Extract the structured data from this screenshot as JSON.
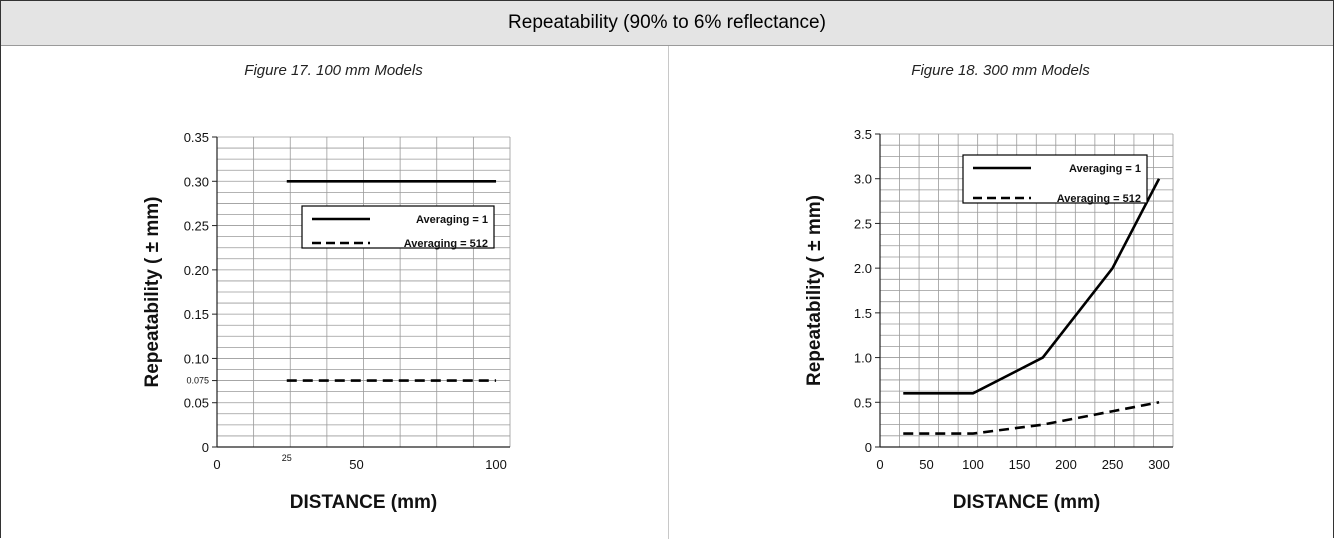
{
  "header": {
    "title": "Repeatability (90% to 6% reflectance)"
  },
  "chart_data": [
    {
      "type": "line",
      "caption": "Figure 17. 100 mm Models",
      "xlabel": "DISTANCE (mm)",
      "ylabel": "Repeatability ( ± mm)",
      "xlim": [
        0,
        105
      ],
      "ylim": [
        0,
        0.35
      ],
      "x_ticks": [
        0,
        25,
        50,
        100
      ],
      "y_ticks": [
        0,
        0.05,
        0.075,
        0.1,
        0.15,
        0.2,
        0.25,
        0.3,
        0.35
      ],
      "y_tick_labels": [
        "0",
        "0.05",
        "0.075",
        "0.10",
        "0.15",
        "0.20",
        "0.25",
        "0.30",
        "0.35"
      ],
      "grid": true,
      "legend_position": "center-right",
      "series": [
        {
          "name": "Averaging = 1",
          "style": "solid",
          "x": [
            25,
            100
          ],
          "y": [
            0.3,
            0.3
          ]
        },
        {
          "name": "Averaging = 512",
          "style": "dashed",
          "x": [
            25,
            100
          ],
          "y": [
            0.075,
            0.075
          ]
        }
      ]
    },
    {
      "type": "line",
      "caption": "Figure 18. 300 mm Models",
      "xlabel": "DISTANCE (mm)",
      "ylabel": "Repeatability ( ± mm)",
      "xlim": [
        0,
        315
      ],
      "ylim": [
        0,
        3.5
      ],
      "x_ticks": [
        0,
        50,
        100,
        150,
        200,
        250,
        300
      ],
      "y_ticks": [
        0,
        0.5,
        1.0,
        1.5,
        2.0,
        2.5,
        3.0,
        3.5
      ],
      "y_tick_labels": [
        "0",
        "0.5",
        "1.0",
        "1.5",
        "2.0",
        "2.5",
        "3.0",
        "3.5"
      ],
      "grid": true,
      "legend_position": "top-right",
      "series": [
        {
          "name": "Averaging = 1",
          "style": "solid",
          "x": [
            25,
            100,
            175,
            250,
            300
          ],
          "y": [
            0.6,
            0.6,
            1.0,
            2.0,
            3.0
          ]
        },
        {
          "name": "Averaging = 512",
          "style": "dashed",
          "x": [
            25,
            100,
            175,
            250,
            300
          ],
          "y": [
            0.15,
            0.15,
            0.25,
            0.4,
            0.5
          ]
        }
      ]
    }
  ]
}
